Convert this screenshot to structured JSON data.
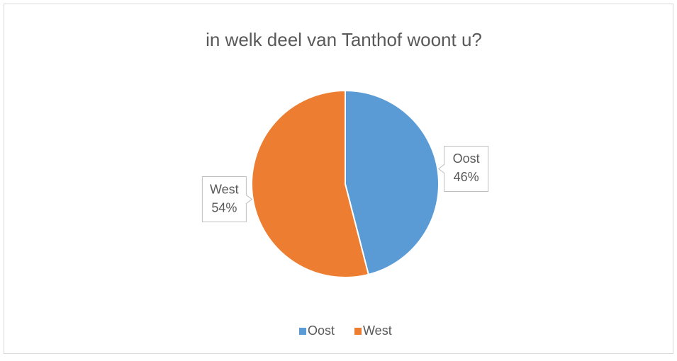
{
  "chart_data": {
    "type": "pie",
    "title": "in welk deel van Tanthof woont u?",
    "categories": [
      "Oost",
      "West"
    ],
    "values": [
      46,
      54
    ],
    "value_labels": [
      "46%",
      "54%"
    ],
    "colors": [
      "#5b9bd5",
      "#ed7d31"
    ],
    "legend": "bottom"
  }
}
